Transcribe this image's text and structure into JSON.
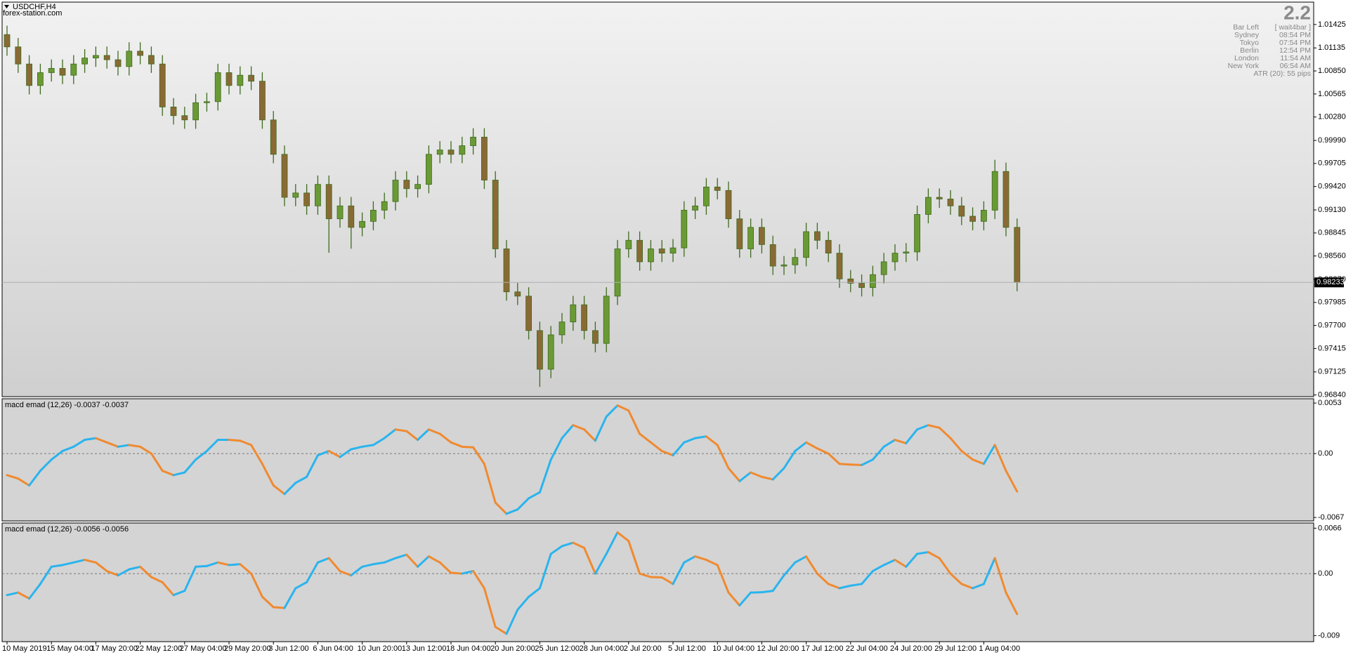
{
  "header": {
    "symbol": "USDCHF,H4",
    "site": "forex-station.com"
  },
  "info_panel": {
    "value": "2.2",
    "rows": [
      {
        "label": "Bar Left",
        "value": "[ wait4bar ]"
      },
      {
        "label": "Sydney",
        "value": "08:54 PM"
      },
      {
        "label": "Tokyo",
        "value": "07:54 PM"
      },
      {
        "label": "Berlin",
        "value": "12:54 PM"
      },
      {
        "label": "London",
        "value": "11:54 AM"
      },
      {
        "label": "New York",
        "value": "06:54 AM"
      }
    ],
    "atr": "ATR (20): 55 pips"
  },
  "chart_data": [
    {
      "type": "candlestick",
      "categories": [
        "10 May 2019",
        null,
        null,
        null,
        "15 May 04:00",
        null,
        null,
        null,
        "17 May 20:00",
        null,
        null,
        null,
        "22 May 12:00",
        null,
        null,
        null,
        "27 May 04:00",
        null,
        null,
        null,
        "29 May 20:00",
        null,
        null,
        null,
        "3 Jun 12:00",
        null,
        null,
        null,
        "6 Jun 04:00",
        null,
        null,
        null,
        "10 Jun 20:00",
        null,
        null,
        null,
        "13 Jun 12:00",
        null,
        null,
        null,
        "18 Jun 04:00",
        null,
        null,
        null,
        "20 Jun 20:00",
        null,
        null,
        null,
        "25 Jun 12:00",
        null,
        null,
        null,
        "28 Jun 04:00",
        null,
        null,
        null,
        "2 Jul 20:00",
        null,
        null,
        null,
        "5 Jul 12:00",
        null,
        null,
        null,
        "10 Jul 04:00",
        null,
        null,
        null,
        "12 Jul 20:00",
        null,
        null,
        null,
        "17 Jul 12:00",
        null,
        null,
        null,
        "22 Jul 04:00",
        null,
        null,
        null,
        "24 Jul 20:00",
        null,
        null,
        null,
        "29 Jul 12:00",
        null,
        null,
        null,
        "1 Aug 04:00",
        null,
        null,
        null
      ],
      "open": [
        1.013,
        1.01148,
        1.00936,
        1.0067,
        1.00829,
        1.00882,
        1.00797,
        1.00936,
        1.0101,
        1.01042,
        1.00989,
        1.00904,
        1.01095,
        1.01042,
        1.00936,
        1.00404,
        1.00297,
        1.00244,
        1.00457,
        1.0047,
        1.00829,
        1.0067,
        1.00797,
        1.00723,
        1.00244,
        0.99818,
        0.99286,
        0.9934,
        0.9918,
        0.99446,
        0.9902,
        0.9918,
        0.98914,
        0.98988,
        0.99127,
        0.99233,
        0.99499,
        0.99393,
        0.99446,
        0.99818,
        0.99872,
        0.99818,
        0.99925,
        1.00031,
        0.99499,
        0.98648,
        0.98116,
        0.98063,
        0.97637,
        0.97158,
        0.97584,
        0.97744,
        0.97956,
        0.97637,
        0.97478,
        0.98063,
        0.98648,
        0.98754,
        0.98488,
        0.98648,
        0.98595,
        0.9866,
        0.99127,
        0.9918,
        0.99414,
        0.99371,
        0.9902,
        0.98648,
        0.98914,
        0.98701,
        0.98435,
        0.9845,
        0.98542,
        0.98861,
        0.98754,
        0.98595,
        0.98276,
        0.98222,
        0.98169,
        0.98329,
        0.98488,
        0.98595,
        0.9861,
        0.99074,
        0.99286,
        0.99265,
        0.9918,
        0.99052,
        0.98988,
        0.99127,
        0.99606,
        0.98914
      ],
      "high": [
        1.0141,
        1.01258,
        1.01046,
        1.00939,
        1.00992,
        1.00992,
        1.01046,
        1.0112,
        1.01152,
        1.01152,
        1.01099,
        1.01205,
        1.01205,
        1.01152,
        1.01046,
        1.00514,
        1.00407,
        1.00567,
        1.0058,
        1.00939,
        1.00939,
        1.00907,
        1.00907,
        1.00833,
        1.00354,
        0.99928,
        0.9945,
        0.9945,
        0.99556,
        0.99556,
        0.9929,
        0.9929,
        0.99098,
        0.99237,
        0.99343,
        0.99609,
        0.99609,
        0.99556,
        0.99928,
        0.99982,
        0.99982,
        1.00035,
        1.00141,
        1.00141,
        0.99609,
        0.98758,
        0.98226,
        0.98173,
        0.97747,
        0.97694,
        0.97854,
        0.98066,
        0.98066,
        0.97747,
        0.98173,
        0.98758,
        0.98864,
        0.98864,
        0.98758,
        0.98758,
        0.9877,
        0.99237,
        0.9929,
        0.99524,
        0.99524,
        0.99481,
        0.9913,
        0.99024,
        0.99024,
        0.98811,
        0.9856,
        0.98652,
        0.98971,
        0.98971,
        0.98864,
        0.98705,
        0.98386,
        0.98332,
        0.98439,
        0.98598,
        0.98705,
        0.9872,
        0.99184,
        0.99396,
        0.99396,
        0.99375,
        0.9929,
        0.99162,
        0.99237,
        0.9975,
        0.99716,
        0.99024
      ],
      "low": [
        1.01038,
        1.00826,
        1.0056,
        1.0056,
        1.00719,
        1.00687,
        1.00687,
        1.00826,
        1.009,
        1.00879,
        1.00794,
        1.00794,
        1.00932,
        1.00826,
        1.00294,
        1.00187,
        1.00134,
        1.00134,
        1.00347,
        1.0036,
        1.0056,
        1.0056,
        1.00613,
        1.00134,
        0.99708,
        0.99176,
        0.99176,
        0.9907,
        0.9907,
        0.986,
        0.9891,
        0.9865,
        0.98804,
        0.98878,
        0.99017,
        0.99123,
        0.99283,
        0.99283,
        0.99336,
        0.99708,
        0.99708,
        0.99708,
        0.99815,
        0.99389,
        0.98538,
        0.98006,
        0.97953,
        0.97527,
        0.9694,
        0.97048,
        0.97474,
        0.97634,
        0.97527,
        0.97368,
        0.97368,
        0.97953,
        0.98538,
        0.98378,
        0.98378,
        0.98485,
        0.98485,
        0.9855,
        0.99017,
        0.9907,
        0.99261,
        0.9891,
        0.98538,
        0.98538,
        0.98591,
        0.98325,
        0.98325,
        0.9834,
        0.98432,
        0.98644,
        0.98485,
        0.98166,
        0.98112,
        0.98059,
        0.98059,
        0.98219,
        0.98378,
        0.98485,
        0.985,
        0.98964,
        0.99155,
        0.9907,
        0.98942,
        0.98878,
        0.98878,
        0.99017,
        0.98804,
        0.98123
      ],
      "close": [
        1.01148,
        1.00936,
        1.0067,
        1.00829,
        1.00882,
        1.00797,
        1.00936,
        1.0101,
        1.01042,
        1.00989,
        1.00904,
        1.01095,
        1.01042,
        1.00936,
        1.00404,
        1.00297,
        1.00244,
        1.00457,
        1.0047,
        1.00829,
        1.0067,
        1.00797,
        1.00723,
        1.00244,
        0.99818,
        0.99286,
        0.9934,
        0.9918,
        0.99446,
        0.9902,
        0.9918,
        0.98914,
        0.98988,
        0.99127,
        0.99233,
        0.99499,
        0.99393,
        0.99446,
        0.99818,
        0.99872,
        0.99818,
        0.99925,
        1.00031,
        0.99499,
        0.98648,
        0.98116,
        0.98063,
        0.97637,
        0.97158,
        0.97584,
        0.97744,
        0.97956,
        0.97637,
        0.97478,
        0.98063,
        0.98648,
        0.98754,
        0.98488,
        0.98648,
        0.98595,
        0.9866,
        0.99127,
        0.9918,
        0.99414,
        0.99371,
        0.9902,
        0.98648,
        0.98914,
        0.98701,
        0.98435,
        0.9845,
        0.98542,
        0.98861,
        0.98754,
        0.98595,
        0.98276,
        0.98222,
        0.98169,
        0.98329,
        0.98488,
        0.98595,
        0.9861,
        0.99074,
        0.99286,
        0.99265,
        0.9918,
        0.99052,
        0.98988,
        0.99127,
        0.99606,
        0.98914,
        0.98233
      ],
      "current_price": 0.98233,
      "ylim": [
        0.96819,
        1.01702
      ],
      "yticks": [
        1.01425,
        1.01135,
        {
          "value": 1.0085,
          "label": "1.00850"
        },
        1.00565,
        {
          "value": 1.0028,
          "label": "1.00280"
        },
        {
          "value": 0.9999,
          "label": "0.99990"
        },
        0.99705,
        {
          "value": 0.9942,
          "label": "0.99420"
        },
        {
          "value": 0.9913,
          "label": "0.99130"
        },
        0.98845,
        {
          "value": 0.9856,
          "label": "0.98560"
        },
        {
          "value": 0.9827,
          "label": "0.98270"
        },
        0.97985,
        {
          "value": 0.977,
          "label": "0.97700"
        },
        0.97415,
        0.97125,
        {
          "value": 0.9684,
          "label": "0.96840"
        }
      ],
      "up_color": "#6a9a34",
      "down_color": "#8a6a34",
      "wick_color": "#3f6a1e"
    },
    {
      "type": "line",
      "title": "macd emad (12,26) -0.0037 -0.0037",
      "values": [
        -0.00226,
        -0.00262,
        -0.00334,
        -0.0018,
        -0.00063,
        0.00027,
        0.00072,
        0.00144,
        0.00162,
        0.00117,
        0.00072,
        0.0009,
        0.00072,
        0,
        -0.0018,
        -0.00226,
        -0.00198,
        -0.00063,
        0.00027,
        0.00144,
        0.00144,
        0.00135,
        0.0009,
        -0.00108,
        -0.00334,
        -0.00424,
        -0.00307,
        -0.00244,
        -0.00018,
        0.00027,
        -0.00036,
        0.00045,
        0.00072,
        0.0009,
        0.00162,
        0.00253,
        0.00235,
        0.00144,
        0.00253,
        0.00207,
        0.00117,
        0.00072,
        0.00065,
        -0.00108,
        -0.00514,
        -0.00631,
        -0.00586,
        -0.00469,
        -0.00406,
        -0.00063,
        0.00162,
        0.00298,
        0.00253,
        0.00135,
        0.00388,
        0.00505,
        0.00451,
        0.00207,
        0.00117,
        0.00027,
        -0.00018,
        0.00117,
        0.00162,
        0.0018,
        0.0009,
        -0.00153,
        -0.00289,
        -0.00198,
        -0.00244,
        -0.00271,
        -0.00153,
        0.00027,
        0.00117,
        0.00054,
        0,
        -0.00108,
        -0.00115,
        -0.0012,
        -0.00063,
        0.00072,
        0.00144,
        0.00108,
        0.00253,
        0.00298,
        0.00271,
        0.00162,
        0.00027,
        -0.00063,
        -0.00108,
        0.0009,
        -0.0018,
        -0.00397
      ],
      "ylim": [
        -0.00706,
        0.00575
      ],
      "yticks": [
        0.0053,
        {
          "value": 0,
          "label": "0.00"
        },
        -0.0067
      ],
      "up_color": "#2ab4ee",
      "down_color": "#f08a30",
      "zero_line": true
    },
    {
      "type": "line",
      "title": "macd emad (12,26) -0.0056 -0.0056",
      "values": [
        -0.00312,
        -0.00275,
        -0.00362,
        -0.0015,
        0.001,
        0.00125,
        0.00162,
        0.002,
        0.00162,
        0.00037,
        -0.00025,
        0.00062,
        0.001,
        -0.0005,
        -0.00125,
        -0.00312,
        -0.0025,
        0.001,
        0.0011,
        0.00162,
        0.00125,
        0.00137,
        0,
        -0.00337,
        -0.00487,
        -0.00499,
        -0.00212,
        -0.00125,
        0.00162,
        0.00225,
        0.00037,
        -0.00025,
        0.001,
        0.00137,
        0.00162,
        0.00225,
        0.00275,
        0.001,
        0.0025,
        0.00162,
        0.00012,
        0,
        0.00037,
        -0.00212,
        -0.00774,
        -0.00874,
        -0.00524,
        -0.00337,
        -0.00212,
        0.00287,
        0.00399,
        0.00449,
        0.00374,
        0,
        0.00287,
        0.00599,
        0.00474,
        0,
        -0.0005,
        -0.00055,
        -0.0015,
        0.00162,
        0.0025,
        0.002,
        0.00125,
        -0.00275,
        -0.00462,
        -0.00275,
        -0.0027,
        -0.0025,
        -0.00025,
        0.00162,
        0.0025,
        0,
        -0.0015,
        -0.00212,
        -0.00175,
        -0.0015,
        0.00037,
        0.00125,
        0.002,
        0.001,
        0.00287,
        0.00312,
        0.00225,
        0,
        -0.0015,
        -0.00212,
        -0.0015,
        0.00225,
        -0.00275,
        -0.00587
      ],
      "ylim": [
        -0.00988,
        0.00735
      ],
      "yticks": [
        0.0066,
        {
          "value": 0,
          "label": "0.00"
        },
        -0.009
      ],
      "up_color": "#2ab4ee",
      "down_color": "#f08a30",
      "zero_line": true
    }
  ]
}
